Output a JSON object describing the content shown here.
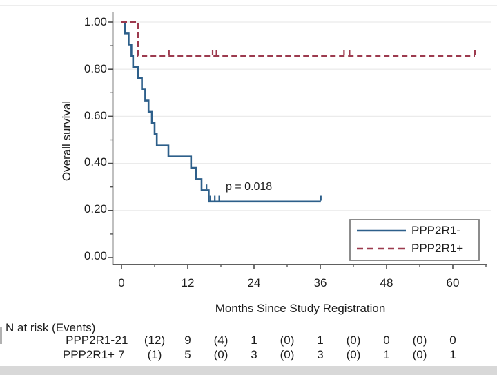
{
  "figure": {
    "p_value_label": "p = 0.018"
  },
  "chart_data": {
    "type": "line",
    "subtype": "kaplan-meier-step",
    "title": "",
    "xlabel": "Months Since Study Registration",
    "ylabel": "Overall survival",
    "xlim": [
      0,
      66
    ],
    "ylim": [
      0,
      1.0
    ],
    "grid": "horizontal-major-light",
    "x_major_ticks": [
      0,
      12,
      24,
      36,
      48,
      60
    ],
    "x_minor_ticks": [
      6,
      18,
      30,
      42,
      54,
      66
    ],
    "x_tick_labels": [
      "0",
      "12",
      "24",
      "36",
      "48",
      "60"
    ],
    "y_major_ticks": [
      0.0,
      0.2,
      0.4,
      0.6,
      0.8,
      1.0
    ],
    "y_minor_ticks": [
      0.1,
      0.3,
      0.5,
      0.7,
      0.9
    ],
    "y_tick_labels": [
      "1.00",
      "0.80",
      "0.60",
      "0.40",
      "0.20",
      "0.00"
    ],
    "annotation": {
      "text": "p = 0.018",
      "x_months": 18.9,
      "y_survival": 0.3
    },
    "legend": {
      "position": "bottom-right",
      "entries": [
        {
          "label": "PPP2R1-",
          "style": "solid",
          "color": "#2d5f8a"
        },
        {
          "label": "PPP2R1+",
          "style": "dashed",
          "color": "#9c3a4e"
        }
      ]
    },
    "series": [
      {
        "name": "PPP2R1-",
        "color": "#2d5f8a",
        "line_style": "solid",
        "steps": [
          [
            0,
            1.0
          ],
          [
            0.6,
            0.952
          ],
          [
            1.3,
            0.905
          ],
          [
            1.8,
            0.857
          ],
          [
            2.1,
            0.81
          ],
          [
            3.0,
            0.762
          ],
          [
            3.7,
            0.714
          ],
          [
            4.3,
            0.667
          ],
          [
            4.9,
            0.619
          ],
          [
            5.5,
            0.571
          ],
          [
            6.0,
            0.524
          ],
          [
            6.4,
            0.476
          ],
          [
            8.5,
            0.429
          ],
          [
            12.6,
            0.381
          ],
          [
            13.5,
            0.333
          ],
          [
            14.5,
            0.286
          ],
          [
            15.8,
            0.238
          ]
        ],
        "end_x": 36.1,
        "censor_marks": [
          [
            15.4,
            0.286
          ],
          [
            16.1,
            0.238
          ],
          [
            16.9,
            0.238
          ],
          [
            17.7,
            0.238
          ],
          [
            36.1,
            0.238
          ]
        ]
      },
      {
        "name": "PPP2R1+",
        "color": "#9c3a4e",
        "line_style": "dashed",
        "steps": [
          [
            0,
            1.0
          ],
          [
            3.0,
            0.857
          ]
        ],
        "end_x": 64.0,
        "censor_marks": [
          [
            8.6,
            0.857
          ],
          [
            16.5,
            0.857
          ],
          [
            17.2,
            0.857
          ],
          [
            40.3,
            0.857
          ],
          [
            41.3,
            0.857
          ],
          [
            64.0,
            0.857
          ]
        ]
      }
    ],
    "risk_table": {
      "title": "N at risk (Events)",
      "time_points": [
        0,
        6,
        12,
        18,
        24,
        30,
        36,
        42,
        48,
        54,
        60
      ],
      "rows": [
        {
          "label": "PPP2R1-",
          "values": [
            "21",
            "(12)",
            "9",
            "(4)",
            "1",
            "(0)",
            "1",
            "(0)",
            "0",
            "(0)",
            "0"
          ]
        },
        {
          "label": "PPP2R1+",
          "values": [
            "7",
            "(1)",
            "5",
            "(0)",
            "3",
            "(0)",
            "3",
            "(0)",
            "1",
            "(0)",
            "1"
          ]
        }
      ]
    },
    "colors": {
      "axis": "#4a4a4a",
      "gridline": "#ebebeb",
      "text": "#1c1c1c",
      "legend_border": "#7f7f7f",
      "page_edge_strip": "#d8d8d8"
    }
  }
}
